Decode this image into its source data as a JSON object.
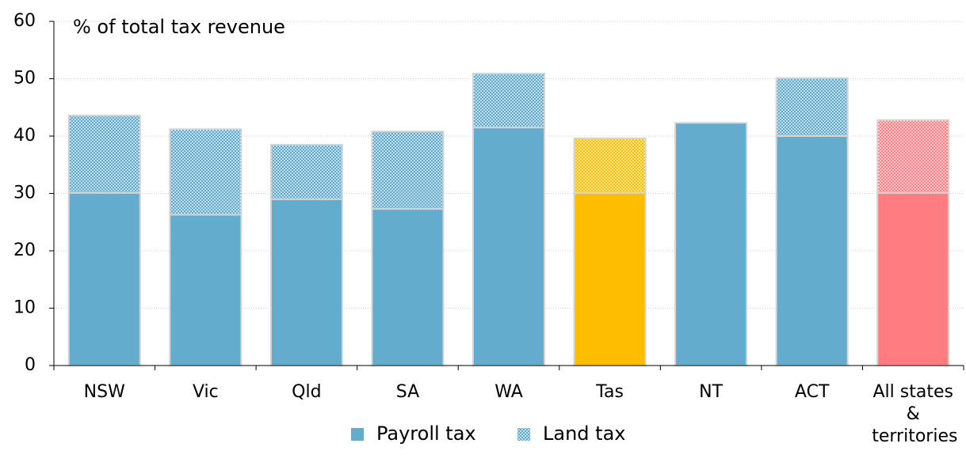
{
  "chart_data": {
    "type": "stacked_bar",
    "title": "% of total tax revenue",
    "categories": [
      "NSW",
      "Vic",
      "Qld",
      "SA",
      "WA",
      "Tas",
      "NT",
      "ACT",
      "All states & territories"
    ],
    "series": [
      {
        "name": "Payroll tax",
        "color": "#63acce",
        "colors": [
          "#63acce",
          "#63acce",
          "#63acce",
          "#63acce",
          "#63acce",
          "#fdbe00",
          "#63acce",
          "#63acce",
          "#ff7c80"
        ],
        "values": [
          30.1,
          26.3,
          29.0,
          27.3,
          41.5,
          30.1,
          42.3,
          40.0,
          30.1
        ]
      },
      {
        "name": "Land tax",
        "color": "#63acce",
        "pattern": "dotted",
        "colors": [
          "#63acce",
          "#63acce",
          "#63acce",
          "#63acce",
          "#63acce",
          "#fdbe00",
          "#63acce",
          "#63acce",
          "#ff7c80"
        ],
        "values": [
          13.5,
          14.9,
          9.5,
          13.5,
          9.4,
          9.5,
          0,
          10.1,
          12.7
        ]
      }
    ],
    "ylim": [
      0,
      60
    ],
    "yticks": [
      0,
      10,
      20,
      30,
      40,
      50,
      60
    ],
    "grid": true,
    "legend": "bottom"
  }
}
